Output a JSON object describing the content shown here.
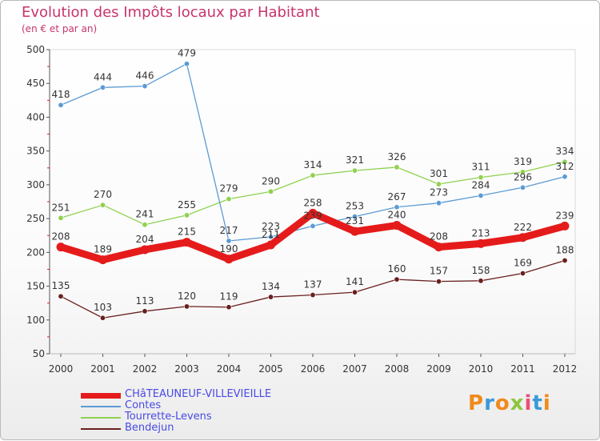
{
  "title": "Evolution des Impôts locaux par Habitant",
  "subtitle": "(en € et par an)",
  "logo_text": "Proxiti",
  "chart_data": {
    "type": "line",
    "title": "Evolution des Impôts locaux par Habitant",
    "subtitle": "(en € et par an)",
    "xlabel": "",
    "ylabel": "",
    "x": [
      "2000",
      "2001",
      "2002",
      "2003",
      "2004",
      "2005",
      "2006",
      "2007",
      "2008",
      "2009",
      "2010",
      "2011",
      "2012"
    ],
    "ylim": [
      50,
      500
    ],
    "yticks": [
      50,
      100,
      150,
      200,
      250,
      300,
      350,
      400,
      450,
      500
    ],
    "grid": false,
    "legend": "bottom-left",
    "series": [
      {
        "name": "CHâTEAUNEUF-VILLEVIEILLE",
        "color": "#e51b1b",
        "values": [
          208,
          189,
          204,
          215,
          190,
          211,
          258,
          231,
          240,
          208,
          213,
          222,
          239
        ]
      },
      {
        "name": "Contes",
        "color": "#5b9bd5",
        "values": [
          418,
          444,
          446,
          479,
          217,
          223,
          239,
          253,
          267,
          273,
          284,
          296,
          312
        ]
      },
      {
        "name": "Tourrette-Levens",
        "color": "#8fd14f",
        "values": [
          251,
          270,
          241,
          255,
          279,
          290,
          314,
          321,
          326,
          301,
          311,
          319,
          334
        ]
      },
      {
        "name": "Bendejun",
        "color": "#6b1f1f",
        "values": [
          135,
          103,
          113,
          120,
          119,
          134,
          137,
          141,
          160,
          157,
          158,
          169,
          188
        ]
      }
    ]
  }
}
